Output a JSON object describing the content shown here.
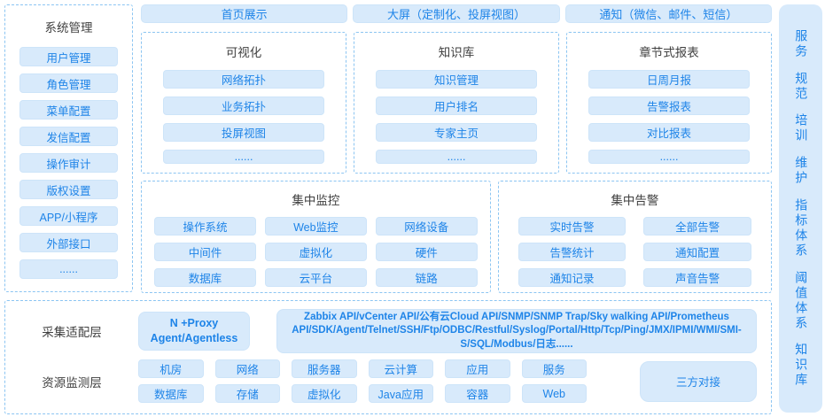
{
  "colors": {
    "accent_blue": "#1E84E8",
    "pill_background": "#D8EAFB",
    "dashed_border": "#8CC5F2",
    "heading_text": "#404040",
    "background": "#FFFFFF"
  },
  "system_management": {
    "title": "系统管理",
    "items": [
      "用户管理",
      "角色管理",
      "菜单配置",
      "发信配置",
      "操作审计",
      "版权设置",
      "APP/小程序",
      "外部接口",
      "......"
    ]
  },
  "top_row": {
    "home": "首页展示",
    "big_screen": "大屏（定制化、投屏视图）",
    "notification": "通知（微信、邮件、短信）"
  },
  "feature_panels": [
    {
      "title": "可视化",
      "items": [
        "网络拓扑",
        "业务拓扑",
        "投屏视图",
        "......"
      ]
    },
    {
      "title": "知识库",
      "items": [
        "知识管理",
        "用户排名",
        "专家主页",
        "......"
      ]
    },
    {
      "title": "章节式报表",
      "items": [
        "日周月报",
        "告警报表",
        "对比报表",
        "......"
      ]
    }
  ],
  "central_monitoring": {
    "title": "集中监控",
    "items": [
      "操作系统",
      "Web监控",
      "网络设备",
      "中间件",
      "虚拟化",
      "硬件",
      "数据库",
      "云平台",
      "链路"
    ]
  },
  "central_alerting": {
    "title": "集中告警",
    "items": [
      "实时告警",
      "全部告警",
      "告警统计",
      "通知配置",
      "通知记录",
      "声音告警"
    ]
  },
  "collection_layer": {
    "label": "采集适配层",
    "proxy_line1": "N +Proxy",
    "proxy_line2": "Agent/Agentless",
    "protocols": "Zabbix API/vCenter API/公有云Cloud API/SNMP/SNMP Trap/Sky walking API/Prometheus API/SDK/Agent/Telnet/SSH/Ftp/ODBC/Restful/Syslog/Portal/Http/Tcp/Ping/JMX/IPMI/WMI/SMI-S/SQL/Modbus/日志......"
  },
  "resource_layer": {
    "label": "资源监测层",
    "items": [
      "机房",
      "网络",
      "服务器",
      "云计算",
      "应用",
      "服务",
      "数据库",
      "存储",
      "虚拟化",
      "Java应用",
      "容器",
      "Web"
    ],
    "third_party": "三方对接"
  },
  "right_sidebar": {
    "items": [
      "服务",
      "规范",
      "培训",
      "维护",
      "指标体系",
      "阈值体系",
      "知识库"
    ]
  }
}
